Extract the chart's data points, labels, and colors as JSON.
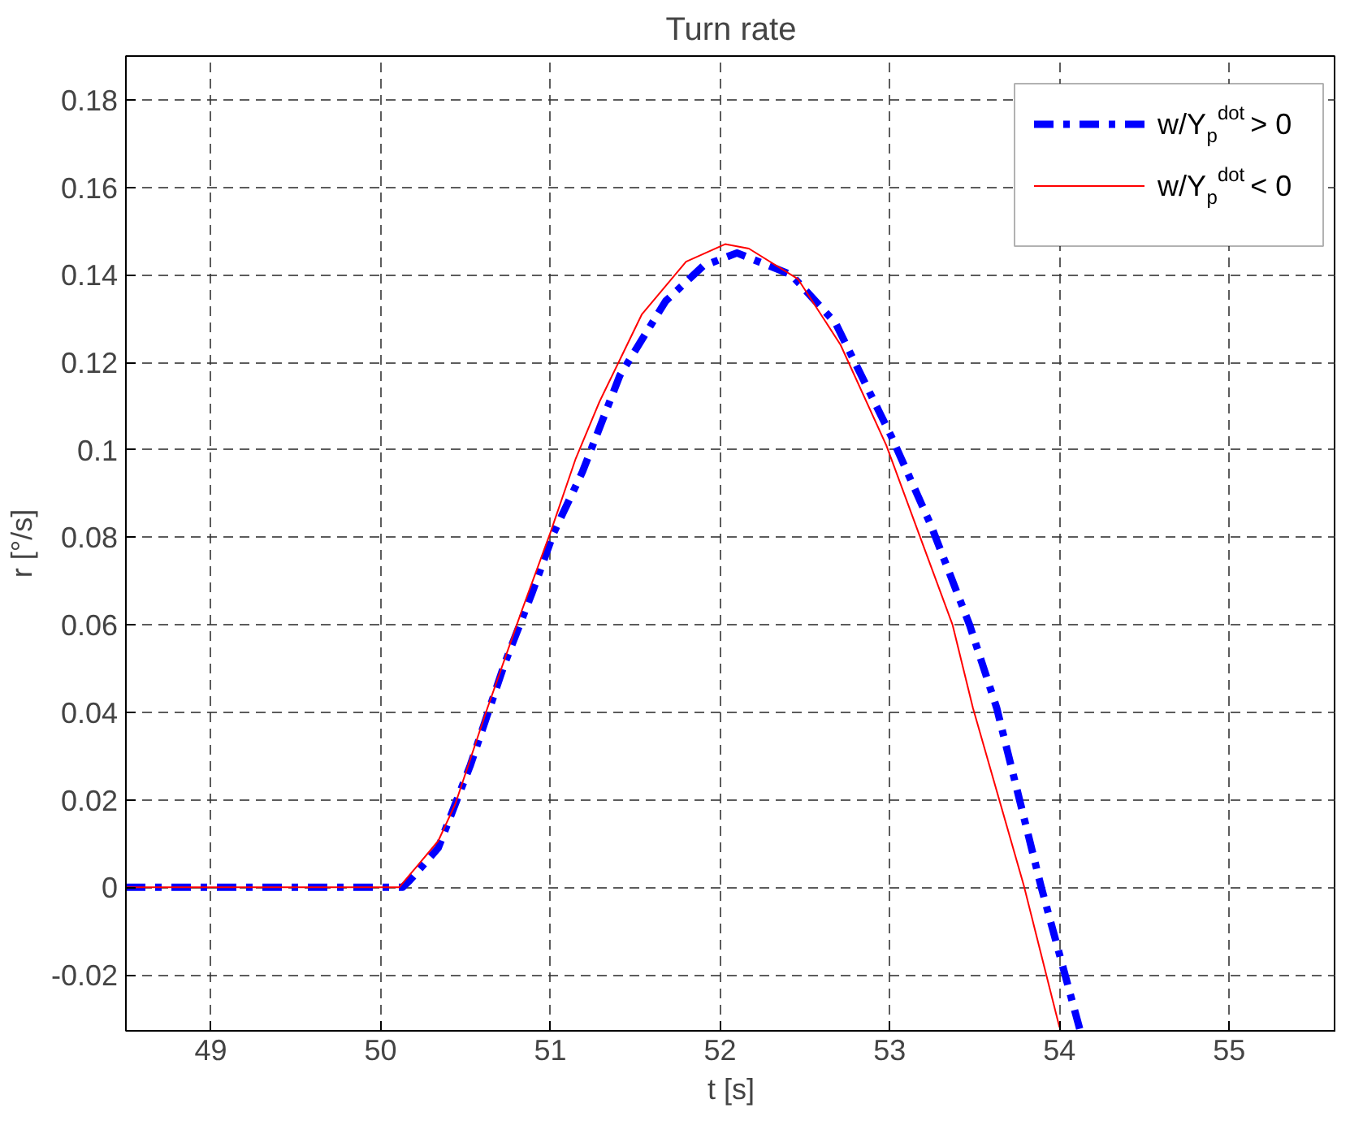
{
  "chart_data": {
    "type": "line",
    "title": "Turn rate",
    "xlabel": "t [s]",
    "ylabel": "r [°/s]",
    "xlim": [
      48.5,
      55.63
    ],
    "xticks": [
      49,
      50,
      51,
      52,
      53,
      54,
      55
    ],
    "ylim": [
      -0.0328,
      0.19
    ],
    "yticks": [
      -0.02,
      0,
      0.02,
      0.04,
      0.06,
      0.08,
      0.1,
      0.12,
      0.14,
      0.16,
      0.18
    ],
    "grid": true,
    "legend": "top right",
    "series": [
      {
        "name": "w/Y$_{p}$$^{dot}$ > 0",
        "color": "#0000ff",
        "line_style": "dashdot",
        "x": [
          48.5,
          50.13,
          50.17,
          50.34,
          50.53,
          50.73,
          50.89,
          51.02,
          51.19,
          51.41,
          51.68,
          51.9,
          52.1,
          52.42,
          52.68,
          53.01,
          53.24,
          53.47,
          53.63,
          53.89,
          54.12
        ],
        "values": [
          0,
          0,
          0.0015,
          0.009,
          0.028,
          0.051,
          0.067,
          0.081,
          0.095,
          0.117,
          0.134,
          0.142,
          0.145,
          0.14,
          0.129,
          0.103,
          0.083,
          0.06,
          0.041,
          0.0004,
          -0.0325
        ]
      },
      {
        "name": "w/Y$_{p}$$^{dot}$ < 0",
        "color": "#ff0000",
        "line_style": "solid",
        "x": [
          48.5,
          50.11,
          50.34,
          50.44,
          50.63,
          50.83,
          51.0,
          51.15,
          51.29,
          51.54,
          51.8,
          52.03,
          52.17,
          52.46,
          52.71,
          52.98,
          53.17,
          53.37,
          53.49,
          53.79,
          54.0
        ],
        "values": [
          0,
          0,
          0.0106,
          0.019,
          0.041,
          0.063,
          0.081,
          0.098,
          0.111,
          0.131,
          0.143,
          0.147,
          0.146,
          0.139,
          0.124,
          0.101,
          0.081,
          0.06,
          0.041,
          0.0004,
          -0.032
        ]
      }
    ]
  }
}
